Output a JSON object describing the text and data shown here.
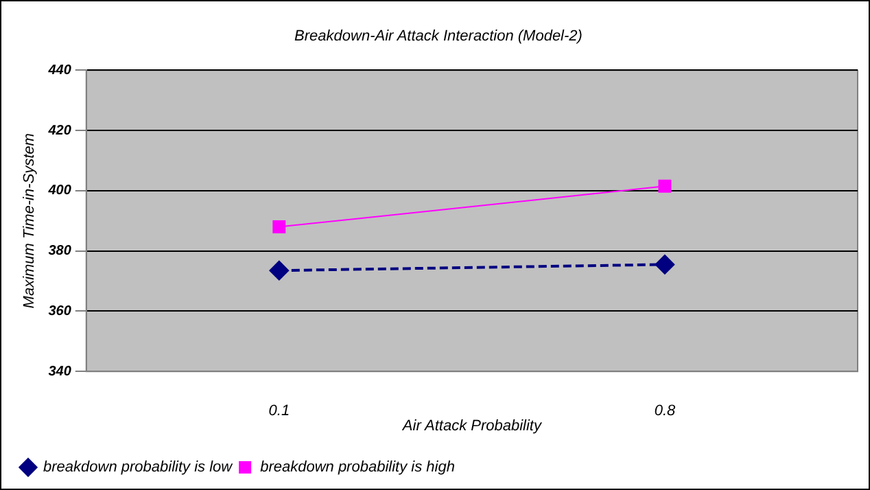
{
  "chart_data": {
    "type": "line",
    "title": "Breakdown-Air Attack Interaction (Model-2)",
    "xlabel": "Air Attack Probability",
    "ylabel": "Maximum Time-in-System",
    "categories": [
      "0.1",
      "0.8"
    ],
    "series": [
      {
        "name": "breakdown probability is low",
        "color": "#000080",
        "values": [
          373.5,
          375.5
        ],
        "marker": "diamond",
        "line_style": "dashed"
      },
      {
        "name": "breakdown probability is high",
        "color": "#ff00ff",
        "values": [
          388,
          401.5
        ],
        "marker": "square",
        "line_style": "solid"
      }
    ],
    "ylim": [
      340,
      440
    ],
    "yticks": [
      340,
      360,
      380,
      400,
      420,
      440
    ],
    "grid": "y",
    "legend": "bottom left"
  }
}
